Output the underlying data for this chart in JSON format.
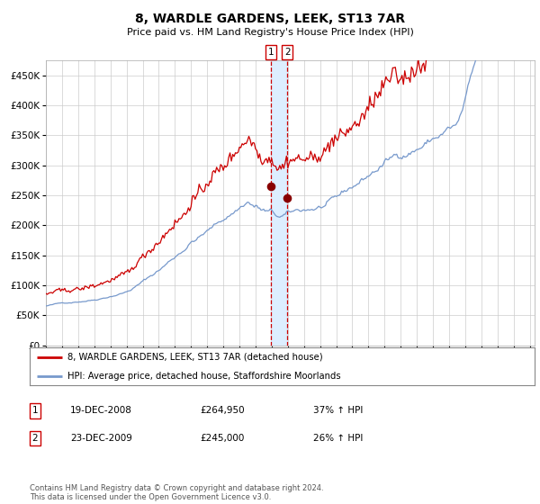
{
  "title": "8, WARDLE GARDENS, LEEK, ST13 7AR",
  "subtitle": "Price paid vs. HM Land Registry's House Price Index (HPI)",
  "legend_line1": "8, WARDLE GARDENS, LEEK, ST13 7AR (detached house)",
  "legend_line2": "HPI: Average price, detached house, Staffordshire Moorlands",
  "sale1_date": "19-DEC-2008",
  "sale1_price": 264950,
  "sale1_pct": "37% ↑ HPI",
  "sale2_date": "23-DEC-2009",
  "sale2_price": 245000,
  "sale2_pct": "26% ↑ HPI",
  "footnote": "Contains HM Land Registry data © Crown copyright and database right 2024.\nThis data is licensed under the Open Government Licence v3.0.",
  "hpi_color": "#7799cc",
  "price_color": "#cc0000",
  "sale_dot_color": "#880000",
  "vspan_color": "#ddeeff",
  "vline_color": "#cc0000",
  "background_color": "#ffffff",
  "grid_color": "#cccccc",
  "ylim": [
    0,
    475000
  ],
  "yticks": [
    0,
    50000,
    100000,
    150000,
    200000,
    250000,
    300000,
    350000,
    400000,
    450000
  ],
  "sale1_x": 2008.97,
  "sale2_x": 2009.97,
  "xlim": [
    1995,
    2025.3
  ]
}
